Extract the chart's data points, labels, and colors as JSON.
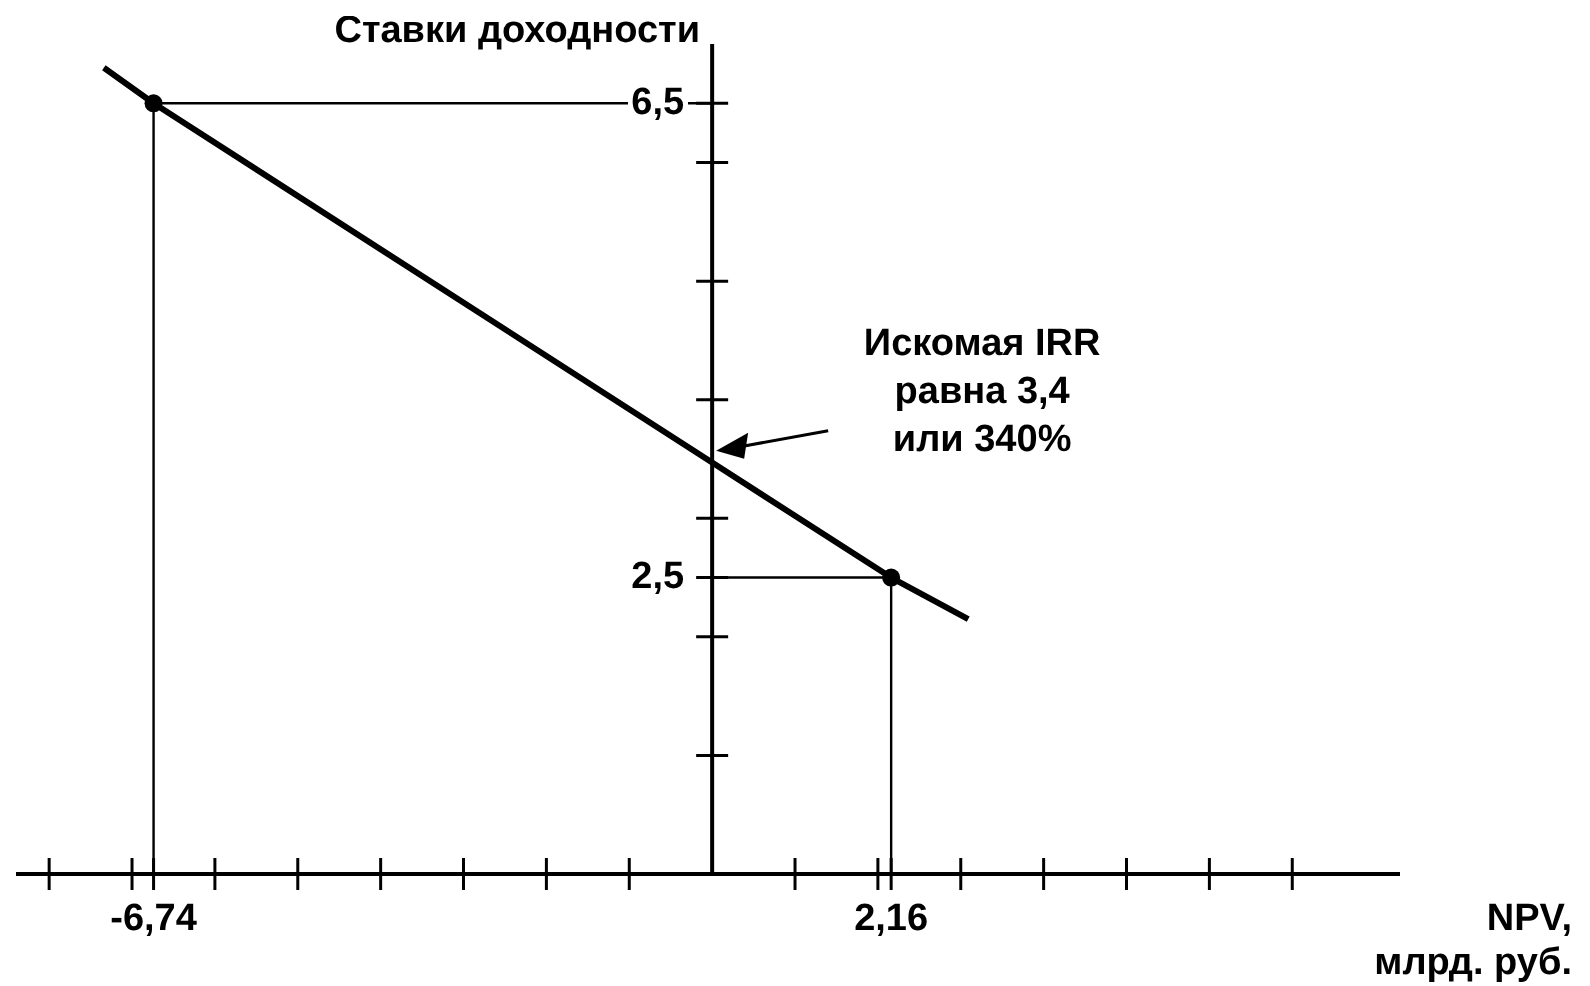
{
  "chart_data": {
    "type": "line",
    "ylabel": "Ставки доходности",
    "xlabel": "NPV, млрд. руб.",
    "xlim": [
      -8.4,
      8.3
    ],
    "xticks": [
      {
        "value": -8,
        "label": null
      },
      {
        "value": -7,
        "label": null
      },
      {
        "value": -6.74,
        "label": "-6,74"
      },
      {
        "value": -6,
        "label": null
      },
      {
        "value": -5,
        "label": null
      },
      {
        "value": -4,
        "label": null
      },
      {
        "value": -3,
        "label": null
      },
      {
        "value": -2,
        "label": null
      },
      {
        "value": -1,
        "label": null
      },
      {
        "value": 1,
        "label": null
      },
      {
        "value": 2,
        "label": null
      },
      {
        "value": 2.16,
        "label": "2,16"
      },
      {
        "value": 3,
        "label": null
      },
      {
        "value": 4,
        "label": null
      },
      {
        "value": 5,
        "label": null
      },
      {
        "value": 6,
        "label": null
      },
      {
        "value": 7,
        "label": null
      }
    ],
    "ylim": [
      0,
      7
    ],
    "yticks": [
      {
        "value": 1,
        "label": null
      },
      {
        "value": 2,
        "label": null
      },
      {
        "value": 2.5,
        "label": "2,5"
      },
      {
        "value": 3,
        "label": null
      },
      {
        "value": 4,
        "label": null
      },
      {
        "value": 5,
        "label": null
      },
      {
        "value": 6,
        "label": null
      },
      {
        "value": 6.5,
        "label": "6,5"
      }
    ],
    "line_style": "solid",
    "annotations": [
      "Искомая IRR равна 3,4 или 340%"
    ],
    "series": [
      {
        "color": "#000000",
        "x": [
          -7.34,
          -6.74,
          0,
          2.16,
          3.09
        ],
        "values": [
          6.8,
          6.5,
          3.47,
          2.5,
          2.15
        ]
      },
      {
        "type": "line",
        "color": "#000000",
        "x": [
          -6.74,
          -6.74,
          0
        ],
        "values": [
          0,
          6.5,
          6.5
        ]
      },
      {
        "type": "line",
        "color": "#000000",
        "x": [
          2.16,
          2.16,
          0
        ],
        "values": [
          0,
          2.5,
          2.5
        ]
      },
      {
        "type": "scatter",
        "marker": "circle",
        "color": "#000000",
        "x": [
          -6.74,
          2.16
        ],
        "values": [
          6.5,
          2.5
        ]
      }
    ]
  }
}
